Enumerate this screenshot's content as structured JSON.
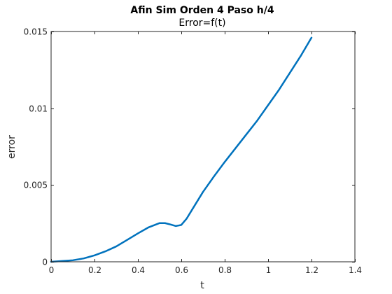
{
  "chart_data": {
    "type": "line",
    "title": "Afin Sim Orden 4 Paso h/4",
    "subtitle": "Error=f(t)",
    "xlabel": "t",
    "ylabel": "error",
    "xlim": [
      0,
      1.4
    ],
    "ylim": [
      0,
      0.015
    ],
    "x_ticks": [
      0,
      0.2,
      0.4,
      0.6,
      0.8,
      1.0,
      1.2,
      1.4
    ],
    "x_tick_labels": [
      "0",
      "0.2",
      "0.4",
      "0.6",
      "0.8",
      "1",
      "1.2",
      "1.4"
    ],
    "y_ticks": [
      0,
      0.005,
      0.01,
      0.015
    ],
    "y_tick_labels": [
      "0",
      "0.005",
      "0.01",
      "0.015"
    ],
    "grid": false,
    "series": [
      {
        "color": "#0072bd",
        "x": [
          0,
          0.05,
          0.1,
          0.15,
          0.2,
          0.25,
          0.3,
          0.35,
          0.4,
          0.45,
          0.5,
          0.525,
          0.55,
          0.575,
          0.6,
          0.625,
          0.65,
          0.7,
          0.75,
          0.8,
          0.85,
          0.9,
          0.95,
          1.0,
          1.05,
          1.1,
          1.15,
          1.2
        ],
        "y": [
          0,
          5e-05,
          0.0001,
          0.00022,
          0.00042,
          0.00068,
          0.001,
          0.00142,
          0.00185,
          0.00225,
          0.00252,
          0.00252,
          0.00243,
          0.00233,
          0.0024,
          0.00282,
          0.0034,
          0.00455,
          0.00555,
          0.0065,
          0.0074,
          0.0083,
          0.0092,
          0.0102,
          0.0112,
          0.0123,
          0.0134,
          0.0146
        ]
      }
    ]
  }
}
